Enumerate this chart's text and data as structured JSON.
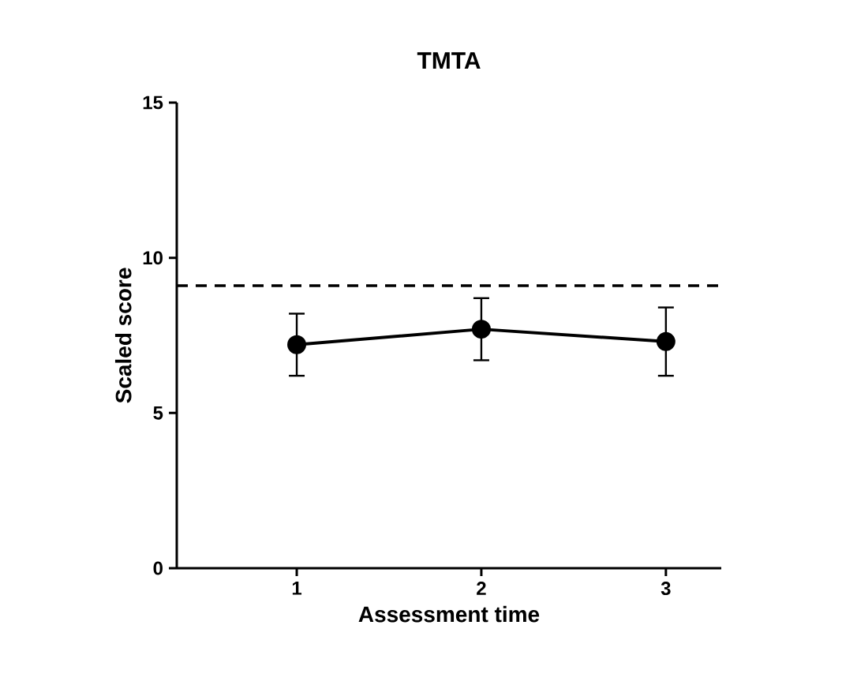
{
  "chart_data": {
    "type": "line",
    "title": "TMTA",
    "xlabel": "Assessment time",
    "ylabel": "Scaled score",
    "x": [
      1,
      2,
      3
    ],
    "series": [
      {
        "color": "#000000",
        "values": [
          7.2,
          7.7,
          7.3
        ],
        "errors": [
          1.0,
          1.0,
          1.1
        ]
      }
    ],
    "xlim": [
      0.35,
      3.3
    ],
    "xticks": [
      1,
      2,
      3
    ],
    "ylim": [
      0,
      15
    ],
    "yticks": [
      0,
      5,
      10,
      15
    ],
    "ref_lines": [
      {
        "axis": "y",
        "value": 9.1,
        "line_style": "dashed",
        "color": "#000000"
      }
    ],
    "marker": "circle",
    "line_style": "solid"
  }
}
